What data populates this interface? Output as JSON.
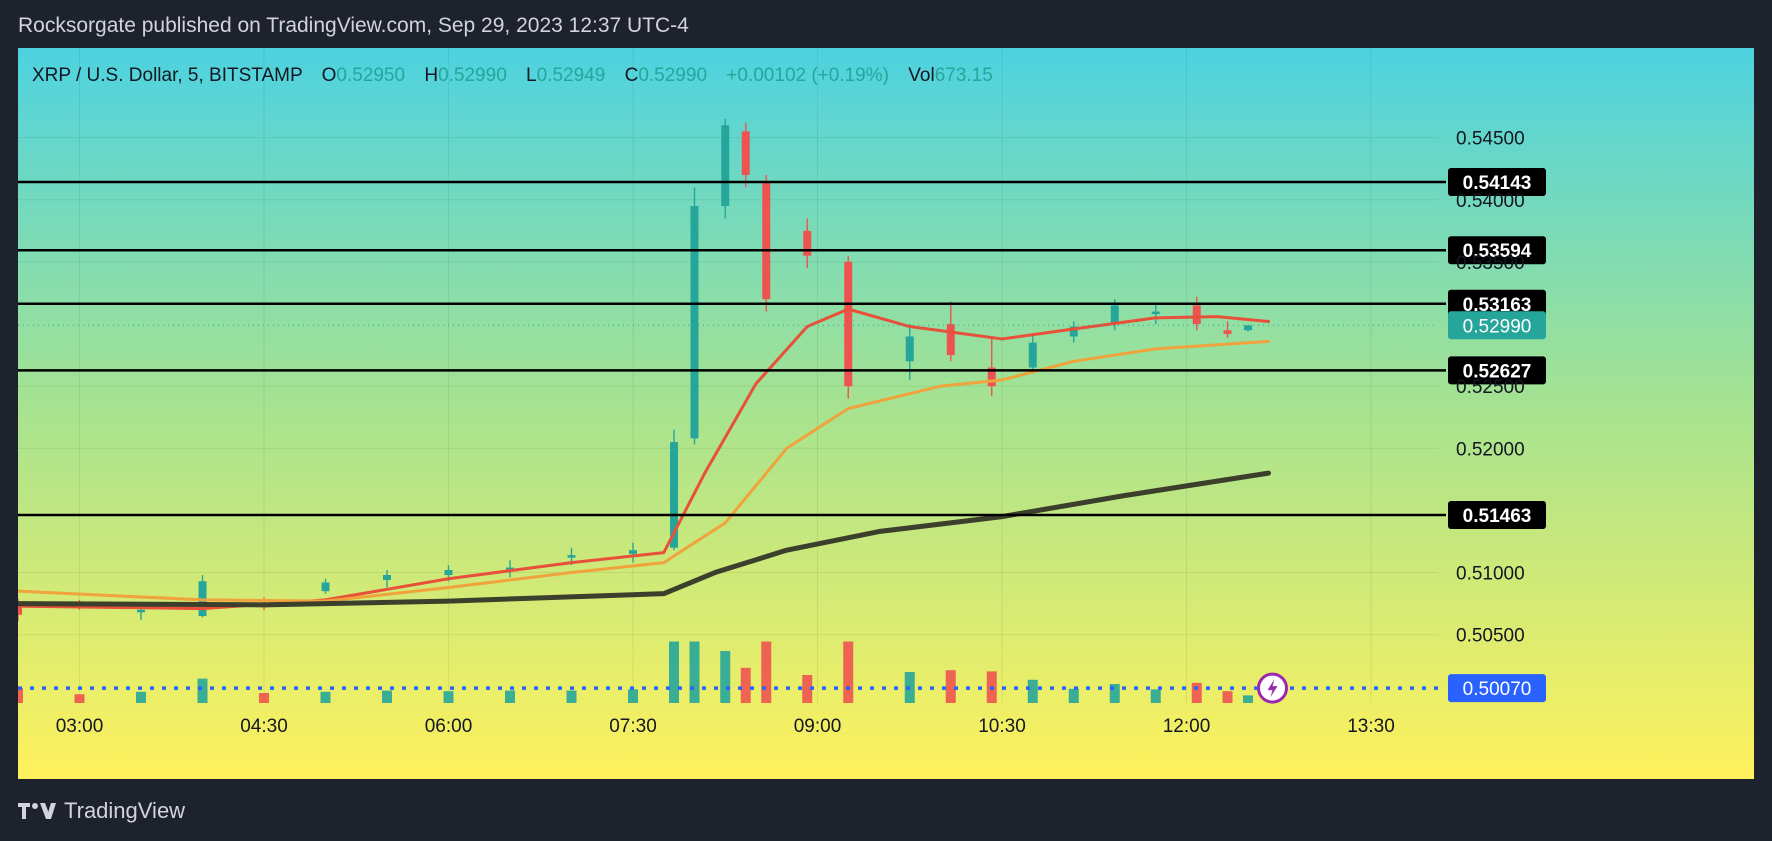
{
  "header": {
    "published_by": "Rocksorgate published on TradingView.com, Sep 29, 2023 12:37 UTC-4"
  },
  "legend": {
    "symbol": "XRP / U.S. Dollar, 5, BITSTAMP",
    "open_label": "O",
    "open": "0.52950",
    "high_label": "H",
    "high": "0.52990",
    "low_label": "L",
    "low": "0.52949",
    "close_label": "C",
    "close": "0.52990",
    "change": "+0.00102 (+0.19%)",
    "volume_label": "Vol",
    "volume": "673.15"
  },
  "footer": {
    "brand": "TradingView",
    "logo_icon": "tradingview-logo-icon"
  },
  "colors": {
    "up": "#26a69a",
    "down": "#ef5350",
    "ma_fast": "#e8503a",
    "ma_mid": "#f0a33c",
    "ma_slow": "#3b3f2c",
    "level_line": "#000000",
    "last_price": "#26a69a",
    "alert_line": "#2962ff",
    "gradient_top": "#4dd2e0",
    "gradient_mid": "#a8e38f",
    "gradient_bottom": "#fff15c"
  },
  "chart_data": {
    "type": "candlestick",
    "instrument": "XRP / U.S. Dollar",
    "interval": "5",
    "exchange": "BITSTAMP",
    "x_ticks": [
      "03:00",
      "04:30",
      "06:00",
      "07:30",
      "09:00",
      "10:30",
      "12:00",
      "13:30"
    ],
    "y_ticks": [
      "0.54500",
      "0.54000",
      "0.53500",
      "0.52500",
      "0.52000",
      "0.51000",
      "0.50500"
    ],
    "y_range": [
      0.4995,
      0.5468
    ],
    "horizontal_levels": [
      "0.54143",
      "0.53594",
      "0.53163",
      "0.52627",
      "0.51463"
    ],
    "last_price": "0.52990",
    "alert_price": "0.50070",
    "ohlc_samples": [
      {
        "time": "02:30",
        "o": 0.5074,
        "h": 0.5079,
        "l": 0.5061,
        "c": 0.5066
      },
      {
        "time": "03:00",
        "o": 0.5075,
        "h": 0.5078,
        "l": 0.507,
        "c": 0.5072
      },
      {
        "time": "03:30",
        "o": 0.5068,
        "h": 0.5074,
        "l": 0.5062,
        "c": 0.507
      },
      {
        "time": "04:00",
        "o": 0.5065,
        "h": 0.5098,
        "l": 0.5064,
        "c": 0.5093
      },
      {
        "time": "04:30",
        "o": 0.5076,
        "h": 0.508,
        "l": 0.507,
        "c": 0.5073
      },
      {
        "time": "05:00",
        "o": 0.5085,
        "h": 0.5095,
        "l": 0.5083,
        "c": 0.5092
      },
      {
        "time": "05:30",
        "o": 0.5094,
        "h": 0.5102,
        "l": 0.5088,
        "c": 0.5098
      },
      {
        "time": "06:00",
        "o": 0.5098,
        "h": 0.5106,
        "l": 0.5093,
        "c": 0.5102
      },
      {
        "time": "06:30",
        "o": 0.5102,
        "h": 0.511,
        "l": 0.5096,
        "c": 0.5104
      },
      {
        "time": "07:00",
        "o": 0.5112,
        "h": 0.512,
        "l": 0.5106,
        "c": 0.5114
      },
      {
        "time": "07:30",
        "o": 0.5115,
        "h": 0.5124,
        "l": 0.5108,
        "c": 0.5118
      },
      {
        "time": "07:50",
        "o": 0.512,
        "h": 0.5215,
        "l": 0.5118,
        "c": 0.5205
      },
      {
        "time": "08:00",
        "o": 0.5208,
        "h": 0.541,
        "l": 0.5203,
        "c": 0.5395
      },
      {
        "time": "08:15",
        "o": 0.5395,
        "h": 0.5465,
        "l": 0.5385,
        "c": 0.546
      },
      {
        "time": "08:25",
        "o": 0.5455,
        "h": 0.5462,
        "l": 0.541,
        "c": 0.542
      },
      {
        "time": "08:35",
        "o": 0.5415,
        "h": 0.542,
        "l": 0.531,
        "c": 0.532
      },
      {
        "time": "08:55",
        "o": 0.5375,
        "h": 0.5385,
        "l": 0.5345,
        "c": 0.5355
      },
      {
        "time": "09:15",
        "o": 0.535,
        "h": 0.5355,
        "l": 0.524,
        "c": 0.525
      },
      {
        "time": "09:45",
        "o": 0.527,
        "h": 0.53,
        "l": 0.5255,
        "c": 0.529
      },
      {
        "time": "10:05",
        "o": 0.53,
        "h": 0.5318,
        "l": 0.527,
        "c": 0.5275
      },
      {
        "time": "10:25",
        "o": 0.5265,
        "h": 0.5288,
        "l": 0.5242,
        "c": 0.525
      },
      {
        "time": "10:45",
        "o": 0.5265,
        "h": 0.5292,
        "l": 0.526,
        "c": 0.5285
      },
      {
        "time": "11:05",
        "o": 0.529,
        "h": 0.5302,
        "l": 0.5285,
        "c": 0.5298
      },
      {
        "time": "11:25",
        "o": 0.53,
        "h": 0.532,
        "l": 0.5295,
        "c": 0.5315
      },
      {
        "time": "11:45",
        "o": 0.5308,
        "h": 0.5316,
        "l": 0.53,
        "c": 0.531
      },
      {
        "time": "12:05",
        "o": 0.5315,
        "h": 0.5322,
        "l": 0.5295,
        "c": 0.53
      },
      {
        "time": "12:20",
        "o": 0.5295,
        "h": 0.5302,
        "l": 0.5289,
        "c": 0.5292
      },
      {
        "time": "12:30",
        "o": 0.5295,
        "h": 0.5299,
        "l": 0.5294,
        "c": 0.5299
      }
    ],
    "moving_averages": [
      {
        "name": "MA fast",
        "values": [
          {
            "time": "02:30",
            "v": 0.5073
          },
          {
            "time": "04:00",
            "v": 0.5071
          },
          {
            "time": "05:00",
            "v": 0.5078
          },
          {
            "time": "06:00",
            "v": 0.5095
          },
          {
            "time": "07:00",
            "v": 0.5108
          },
          {
            "time": "07:45",
            "v": 0.5116
          },
          {
            "time": "08:05",
            "v": 0.518
          },
          {
            "time": "08:30",
            "v": 0.5252
          },
          {
            "time": "08:55",
            "v": 0.5298
          },
          {
            "time": "09:15",
            "v": 0.5312
          },
          {
            "time": "09:45",
            "v": 0.5298
          },
          {
            "time": "10:30",
            "v": 0.5288
          },
          {
            "time": "11:05",
            "v": 0.5296
          },
          {
            "time": "11:45",
            "v": 0.5305
          },
          {
            "time": "12:15",
            "v": 0.5306
          },
          {
            "time": "12:40",
            "v": 0.5302
          }
        ]
      },
      {
        "name": "MA mid",
        "values": [
          {
            "time": "02:30",
            "v": 0.5085
          },
          {
            "time": "04:00",
            "v": 0.5078
          },
          {
            "time": "05:00",
            "v": 0.5077
          },
          {
            "time": "06:00",
            "v": 0.5088
          },
          {
            "time": "07:00",
            "v": 0.51
          },
          {
            "time": "07:45",
            "v": 0.5108
          },
          {
            "time": "08:15",
            "v": 0.514
          },
          {
            "time": "08:45",
            "v": 0.52
          },
          {
            "time": "09:15",
            "v": 0.5232
          },
          {
            "time": "10:00",
            "v": 0.525
          },
          {
            "time": "10:30",
            "v": 0.5255
          },
          {
            "time": "11:05",
            "v": 0.527
          },
          {
            "time": "11:45",
            "v": 0.528
          },
          {
            "time": "12:40",
            "v": 0.5286
          }
        ]
      },
      {
        "name": "MA slow",
        "values": [
          {
            "time": "02:30",
            "v": 0.5075
          },
          {
            "time": "04:30",
            "v": 0.5074
          },
          {
            "time": "06:00",
            "v": 0.5077
          },
          {
            "time": "07:45",
            "v": 0.5083
          },
          {
            "time": "08:10",
            "v": 0.51
          },
          {
            "time": "08:45",
            "v": 0.5118
          },
          {
            "time": "09:30",
            "v": 0.5133
          },
          {
            "time": "10:30",
            "v": 0.5145
          },
          {
            "time": "11:30",
            "v": 0.5162
          },
          {
            "time": "12:40",
            "v": 0.518
          }
        ]
      }
    ]
  }
}
